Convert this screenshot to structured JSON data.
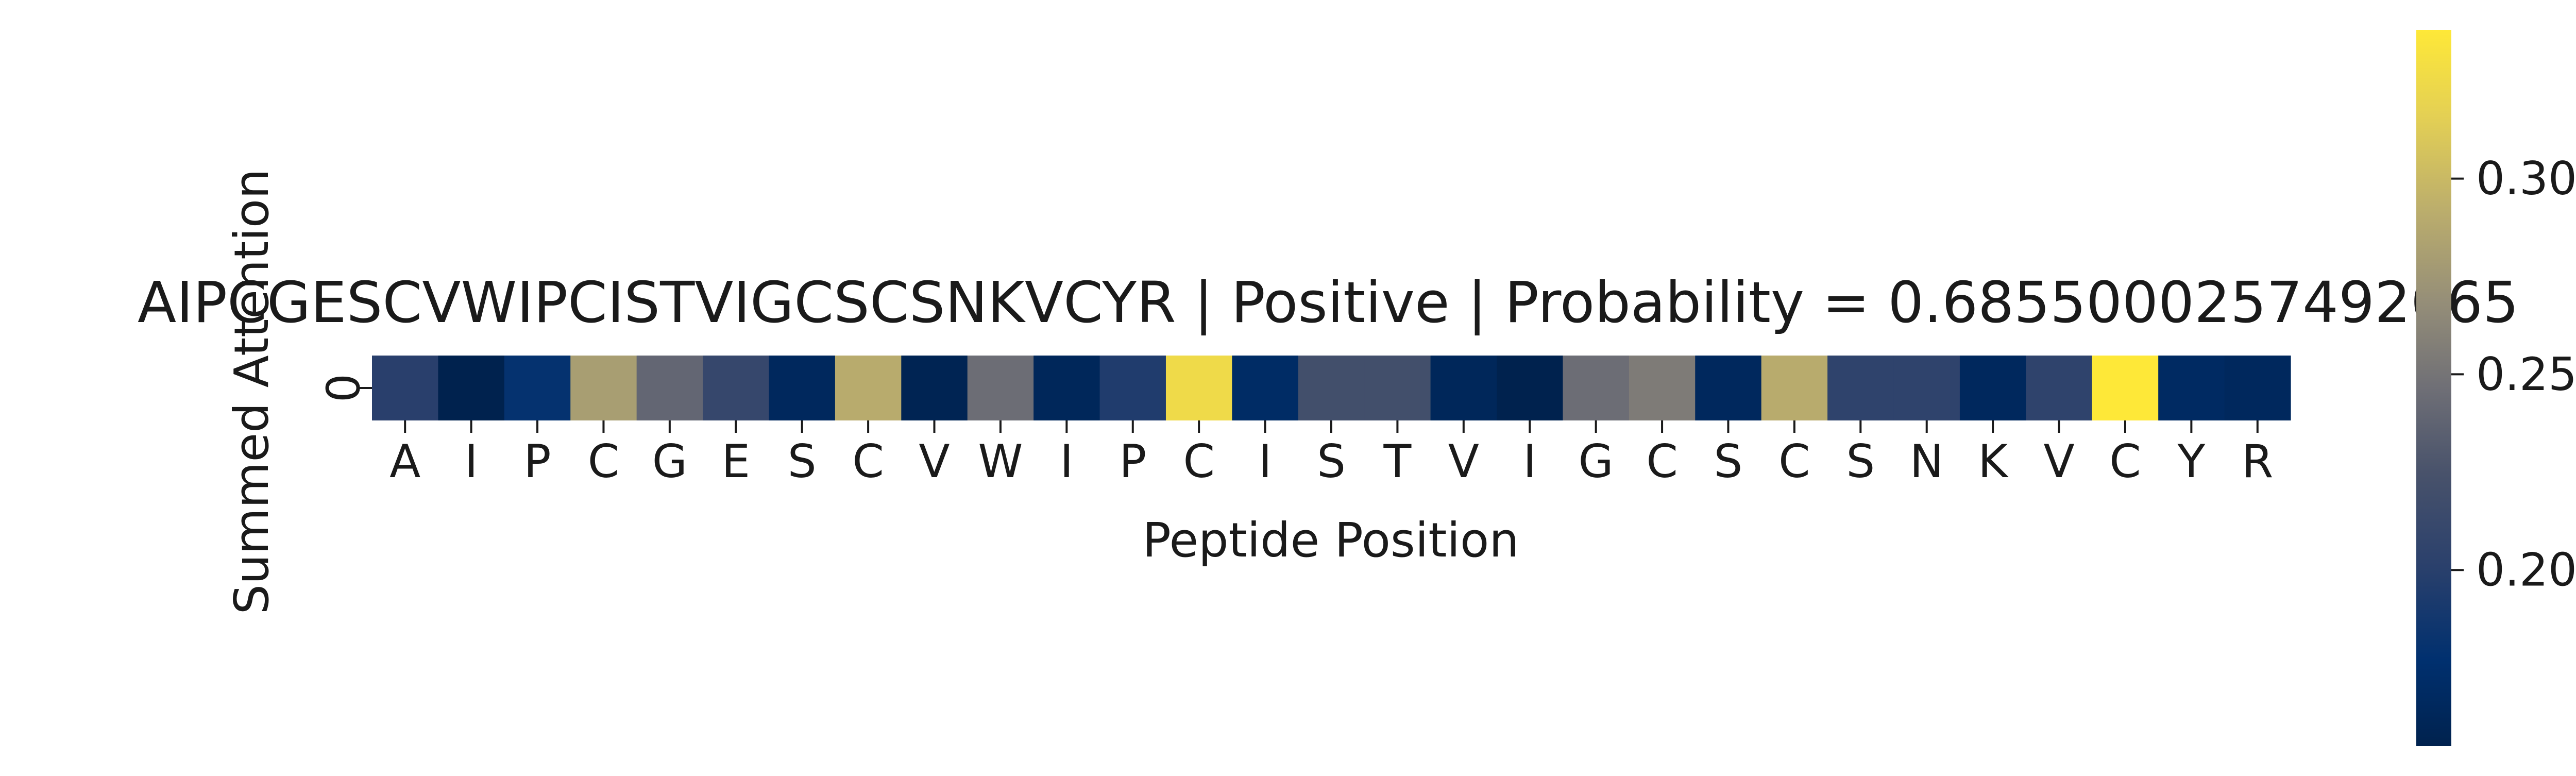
{
  "chart_data": {
    "type": "heatmap",
    "title": "AIPCGESCVWIPCISTVIGCSCSNKVCYR | Positive | Probability = 0.6855000257492065",
    "xlabel": "Peptide Position",
    "ylabel": "Summed Attention",
    "row_labels": [
      "0"
    ],
    "categories": [
      "A",
      "I",
      "P",
      "C",
      "G",
      "E",
      "S",
      "C",
      "V",
      "W",
      "I",
      "P",
      "C",
      "I",
      "S",
      "T",
      "V",
      "I",
      "G",
      "C",
      "S",
      "C",
      "S",
      "N",
      "K",
      "V",
      "C",
      "Y",
      "R"
    ],
    "values": [
      [
        0.2,
        0.155,
        0.18,
        0.28,
        0.24,
        0.21,
        0.165,
        0.29,
        0.158,
        0.245,
        0.163,
        0.195,
        0.325,
        0.17,
        0.22,
        0.22,
        0.163,
        0.155,
        0.245,
        0.255,
        0.165,
        0.29,
        0.205,
        0.205,
        0.165,
        0.205,
        0.338,
        0.168,
        0.165
      ]
    ],
    "colormap": "cividis",
    "vmin": 0.155,
    "vmax": 0.338,
    "colorbar_ticks": [
      {
        "value": 0.2,
        "label": "0.20"
      },
      {
        "value": 0.25,
        "label": "0.25"
      },
      {
        "value": 0.3,
        "label": "0.30"
      }
    ],
    "grid": false
  }
}
